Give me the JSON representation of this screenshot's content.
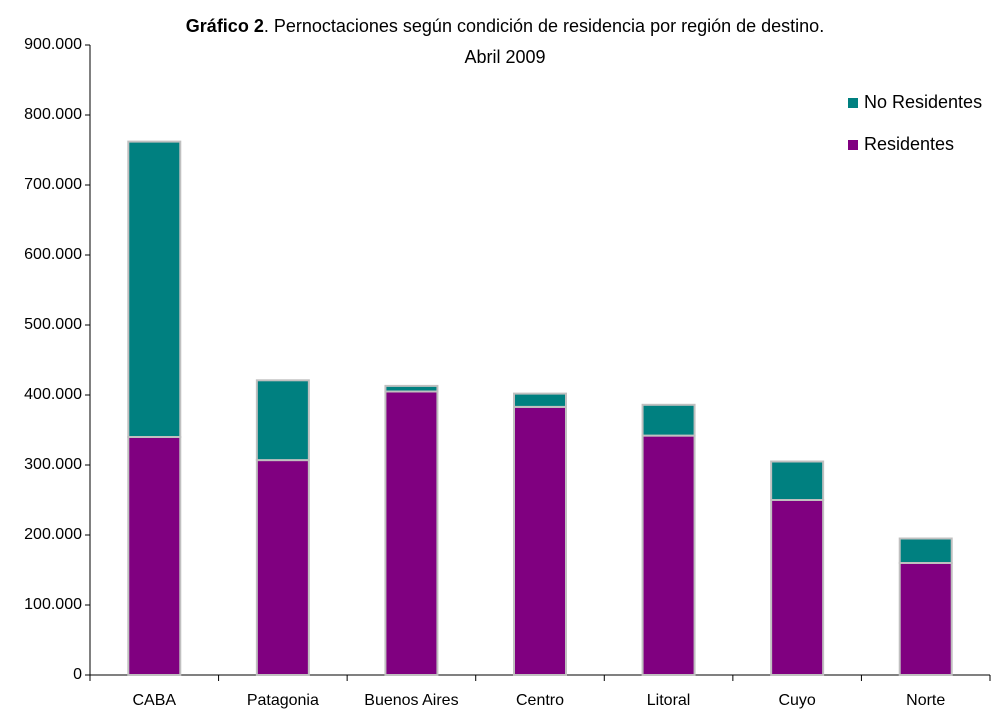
{
  "chart_data": {
    "type": "stacked_bar",
    "title_bold": "Gráfico 2",
    "title": ". Pernoctaciones según condición de residencia por región de destino.",
    "subtitle": "Abril 2009",
    "categories": [
      "CABA",
      "Patagonia",
      "Buenos Aires",
      "Centro",
      "Litoral",
      "Cuyo",
      "Norte"
    ],
    "series": [
      {
        "name": "Residentes",
        "color": "#800080",
        "values": [
          340000,
          307000,
          405000,
          383000,
          342000,
          250000,
          160000
        ]
      },
      {
        "name": "No Residentes",
        "color": "#008080",
        "values": [
          422000,
          114000,
          8000,
          19000,
          44000,
          55000,
          35000
        ]
      }
    ],
    "ylim": [
      0,
      900000
    ],
    "yticks": [
      0,
      {
        "value": 100000,
        "label": "100.000"
      },
      {
        "value": 200000,
        "label": "200.000"
      },
      {
        "value": 300000,
        "label": "300.000"
      },
      {
        "value": 400000,
        "label": "400.000"
      },
      {
        "value": 500000,
        "label": "500.000"
      },
      {
        "value": 600000,
        "label": "600.000"
      },
      {
        "value": 700000,
        "label": "700.000"
      },
      {
        "value": 800000,
        "label": "800.000"
      },
      {
        "value": 900000,
        "label": "900.000"
      }
    ],
    "legend": "top-right",
    "grid": false
  }
}
